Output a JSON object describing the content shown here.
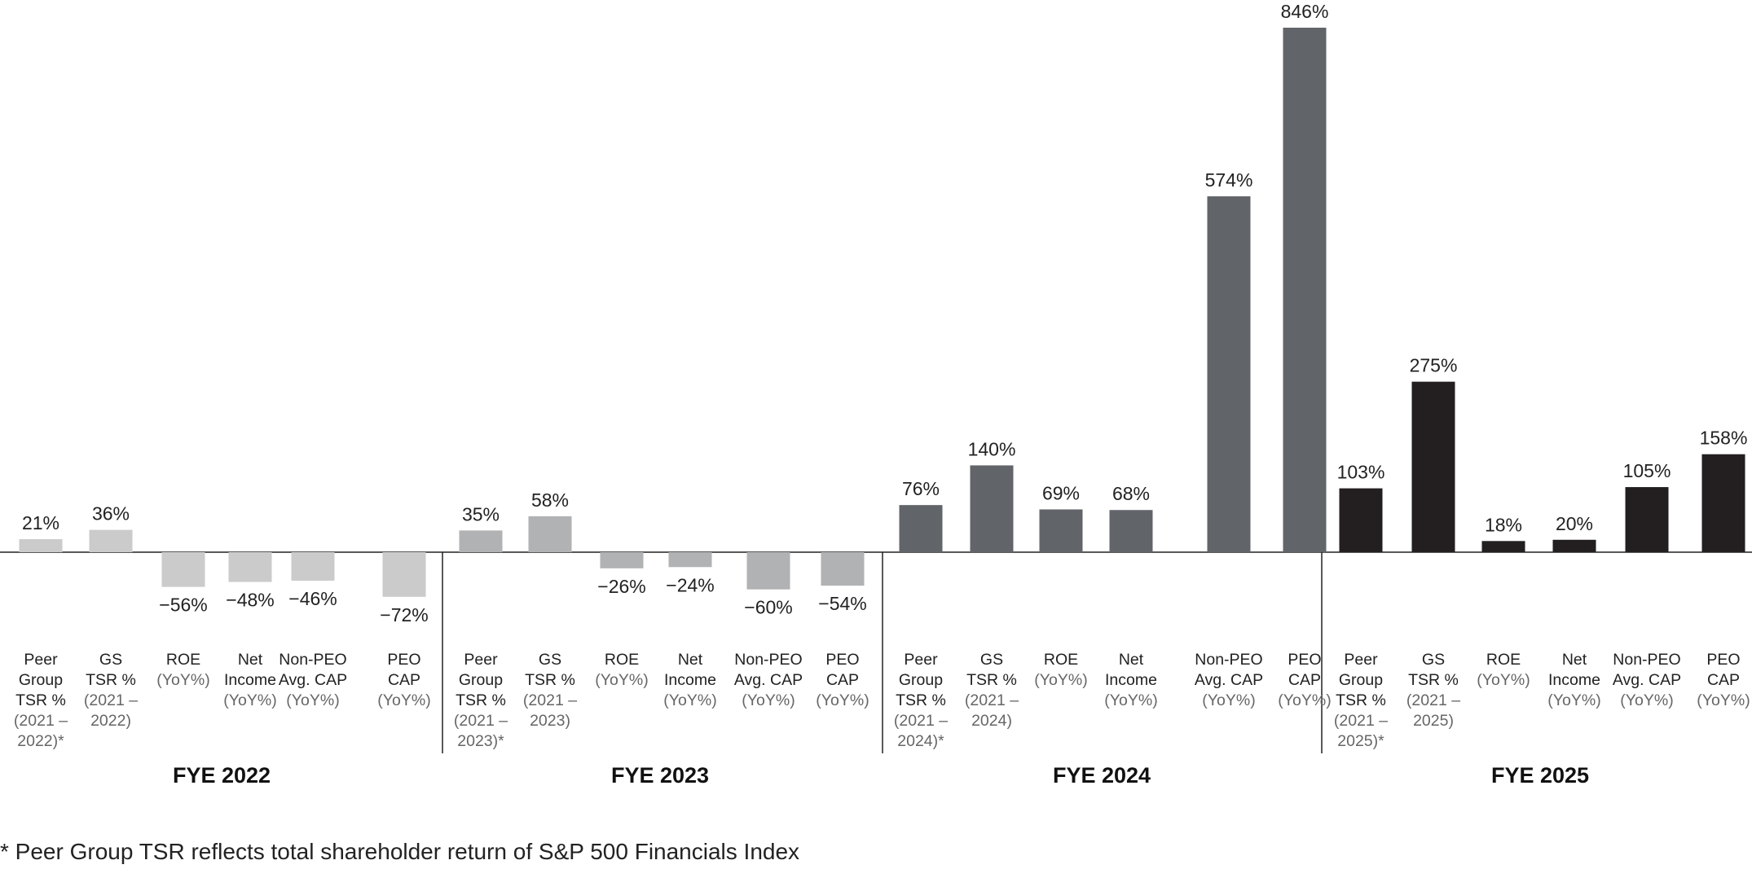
{
  "chart_data": {
    "type": "bar",
    "title": "",
    "ylim": [
      -72,
      846
    ],
    "grid": false,
    "groups": [
      {
        "name": "FYE 2022",
        "color": "#cbcbcc",
        "bars": [
          {
            "label": [
              "Peer",
              "Group",
              "TSR %"
            ],
            "sublabel": [
              "(2021 –",
              "2022)*"
            ],
            "value": 21,
            "text": "21%"
          },
          {
            "label": [
              "GS",
              "TSR %"
            ],
            "sublabel": [
              "(2021 –",
              "2022)"
            ],
            "value": 36,
            "text": "36%"
          },
          {
            "label": [
              "ROE"
            ],
            "sublabel": [
              "(YoY%)"
            ],
            "value": -56,
            "text": "−56%"
          },
          {
            "label": [
              "Net",
              "Income"
            ],
            "sublabel": [
              "(YoY%)"
            ],
            "value": -48,
            "text": "−48%"
          },
          {
            "label": [
              "Non-PEO",
              "Avg. CAP"
            ],
            "sublabel": [
              "(YoY%)"
            ],
            "value": -46,
            "text": "−46%"
          },
          {
            "label": [
              "PEO",
              "CAP"
            ],
            "sublabel": [
              "(YoY%)"
            ],
            "value": -72,
            "text": "−72%"
          }
        ]
      },
      {
        "name": "FYE 2023",
        "color": "#b1b2b3",
        "bars": [
          {
            "label": [
              "Peer",
              "Group",
              "TSR %"
            ],
            "sublabel": [
              "(2021 –",
              "2023)*"
            ],
            "value": 35,
            "text": "35%"
          },
          {
            "label": [
              "GS",
              "TSR %"
            ],
            "sublabel": [
              "(2021 –",
              "2023)"
            ],
            "value": 58,
            "text": "58%"
          },
          {
            "label": [
              "ROE"
            ],
            "sublabel": [
              "(YoY%)"
            ],
            "value": -26,
            "text": "−26%"
          },
          {
            "label": [
              "Net",
              "Income"
            ],
            "sublabel": [
              "(YoY%)"
            ],
            "value": -24,
            "text": "−24%"
          },
          {
            "label": [
              "Non-PEO",
              "Avg. CAP"
            ],
            "sublabel": [
              "(YoY%)"
            ],
            "value": -60,
            "text": "−60%"
          },
          {
            "label": [
              "PEO",
              "CAP"
            ],
            "sublabel": [
              "(YoY%)"
            ],
            "value": -54,
            "text": "−54%"
          }
        ]
      },
      {
        "name": "FYE 2024",
        "color": "#616468",
        "bars": [
          {
            "label": [
              "Peer",
              "Group",
              "TSR %"
            ],
            "sublabel": [
              "(2021 –",
              "2024)*"
            ],
            "value": 76,
            "text": "76%"
          },
          {
            "label": [
              "GS",
              "TSR %"
            ],
            "sublabel": [
              "(2021 –",
              "2024)"
            ],
            "value": 140,
            "text": "140%"
          },
          {
            "label": [
              "ROE"
            ],
            "sublabel": [
              "(YoY%)"
            ],
            "value": 69,
            "text": "69%"
          },
          {
            "label": [
              "Net",
              "Income"
            ],
            "sublabel": [
              "(YoY%)"
            ],
            "value": 68,
            "text": "68%"
          },
          {
            "label": [
              "Non-PEO",
              "Avg. CAP"
            ],
            "sublabel": [
              "(YoY%)"
            ],
            "value": 574,
            "text": "574%"
          },
          {
            "label": [
              "PEO",
              "CAP"
            ],
            "sublabel": [
              "(YoY%)"
            ],
            "value": 846,
            "text": "846%"
          }
        ]
      },
      {
        "name": "FYE 2025",
        "color": "#231f20",
        "bars": [
          {
            "label": [
              "Peer",
              "Group",
              "TSR %"
            ],
            "sublabel": [
              "(2021 –",
              "2025)*"
            ],
            "value": 103,
            "text": "103%"
          },
          {
            "label": [
              "GS",
              "TSR %"
            ],
            "sublabel": [
              "(2021 –",
              "2025)"
            ],
            "value": 275,
            "text": "275%"
          },
          {
            "label": [
              "ROE"
            ],
            "sublabel": [
              "(YoY%)"
            ],
            "value": 18,
            "text": "18%"
          },
          {
            "label": [
              "Net",
              "Income"
            ],
            "sublabel": [
              "(YoY%)"
            ],
            "value": 20,
            "text": "20%"
          },
          {
            "label": [
              "Non-PEO",
              "Avg. CAP"
            ],
            "sublabel": [
              "(YoY%)"
            ],
            "value": 105,
            "text": "105%"
          },
          {
            "label": [
              "PEO",
              "CAP"
            ],
            "sublabel": [
              "(YoY%)"
            ],
            "value": 158,
            "text": "158%"
          }
        ]
      }
    ]
  },
  "footnote": "* Peer Group TSR reflects total shareholder return of S&P 500 Financials Index"
}
